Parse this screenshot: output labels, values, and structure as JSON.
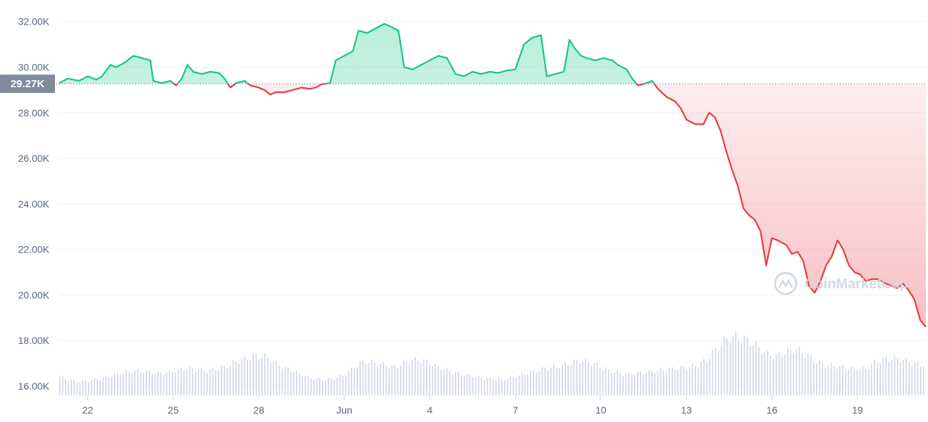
{
  "chart_data": {
    "type": "line",
    "title": "",
    "xlabel": "",
    "ylabel": "",
    "ylim": [
      15600,
      32700
    ],
    "baseline": 29270,
    "baseline_label": "29.27K",
    "y_ticks": [
      {
        "value": 32000,
        "label": "32.00K"
      },
      {
        "value": 30000,
        "label": "30.00K"
      },
      {
        "value": 28000,
        "label": "28.00K"
      },
      {
        "value": 26000,
        "label": "26.00K"
      },
      {
        "value": 24000,
        "label": "24.00K"
      },
      {
        "value": 22000,
        "label": "22.00K"
      },
      {
        "value": 20000,
        "label": "20.00K"
      },
      {
        "value": 18000,
        "label": "18.00K"
      },
      {
        "value": 16000,
        "label": "16.00K"
      }
    ],
    "x_ticks": [
      {
        "day": 22,
        "label": "22"
      },
      {
        "day": 25,
        "label": "25"
      },
      {
        "day": 28,
        "label": "28"
      },
      {
        "day": 31,
        "label": "Jun"
      },
      {
        "day": 34,
        "label": "4"
      },
      {
        "day": 37,
        "label": "7"
      },
      {
        "day": 40,
        "label": "10"
      },
      {
        "day": 43,
        "label": "13"
      },
      {
        "day": 46,
        "label": "16"
      },
      {
        "day": 49,
        "label": "19"
      }
    ],
    "xlim": [
      21.0,
      51.4
    ],
    "series": [
      {
        "points": [
          [
            21.0,
            29300
          ],
          [
            21.3,
            29500
          ],
          [
            21.7,
            29400
          ],
          [
            22.0,
            29600
          ],
          [
            22.3,
            29450
          ],
          [
            22.5,
            29600
          ],
          [
            22.8,
            30100
          ],
          [
            23.0,
            30000
          ],
          [
            23.3,
            30200
          ],
          [
            23.6,
            30500
          ],
          [
            23.9,
            30400
          ],
          [
            24.2,
            30300
          ],
          [
            24.3,
            29400
          ],
          [
            24.6,
            29300
          ],
          [
            24.9,
            29400
          ],
          [
            25.1,
            29200
          ],
          [
            25.3,
            29500
          ],
          [
            25.5,
            30100
          ],
          [
            25.7,
            29800
          ],
          [
            26.0,
            29700
          ],
          [
            26.3,
            29800
          ],
          [
            26.6,
            29750
          ],
          [
            26.8,
            29500
          ],
          [
            27.0,
            29100
          ],
          [
            27.2,
            29300
          ],
          [
            27.5,
            29400
          ],
          [
            27.7,
            29200
          ],
          [
            28.0,
            29100
          ],
          [
            28.2,
            29000
          ],
          [
            28.4,
            28800
          ],
          [
            28.6,
            28900
          ],
          [
            28.9,
            28900
          ],
          [
            29.2,
            29000
          ],
          [
            29.5,
            29100
          ],
          [
            29.8,
            29050
          ],
          [
            30.0,
            29100
          ],
          [
            30.2,
            29250
          ],
          [
            30.5,
            29300
          ],
          [
            30.7,
            30300
          ],
          [
            31.0,
            30500
          ],
          [
            31.3,
            30700
          ],
          [
            31.5,
            31600
          ],
          [
            31.8,
            31500
          ],
          [
            32.1,
            31700
          ],
          [
            32.4,
            31900
          ],
          [
            32.6,
            31800
          ],
          [
            32.9,
            31600
          ],
          [
            33.1,
            30000
          ],
          [
            33.4,
            29900
          ],
          [
            33.7,
            30100
          ],
          [
            34.0,
            30300
          ],
          [
            34.3,
            30500
          ],
          [
            34.6,
            30400
          ],
          [
            34.9,
            29700
          ],
          [
            35.2,
            29600
          ],
          [
            35.5,
            29800
          ],
          [
            35.8,
            29700
          ],
          [
            36.1,
            29800
          ],
          [
            36.4,
            29750
          ],
          [
            36.7,
            29850
          ],
          [
            37.0,
            29900
          ],
          [
            37.3,
            31000
          ],
          [
            37.6,
            31300
          ],
          [
            37.9,
            31400
          ],
          [
            38.1,
            29600
          ],
          [
            38.4,
            29700
          ],
          [
            38.7,
            29800
          ],
          [
            38.9,
            31200
          ],
          [
            39.1,
            30800
          ],
          [
            39.3,
            30500
          ],
          [
            39.5,
            30400
          ],
          [
            39.8,
            30300
          ],
          [
            40.1,
            30400
          ],
          [
            40.4,
            30300
          ],
          [
            40.6,
            30100
          ],
          [
            40.9,
            29900
          ],
          [
            41.1,
            29500
          ],
          [
            41.3,
            29200
          ],
          [
            41.6,
            29300
          ],
          [
            41.8,
            29400
          ],
          [
            42.0,
            29050
          ],
          [
            42.3,
            28700
          ],
          [
            42.6,
            28500
          ],
          [
            42.8,
            28200
          ],
          [
            43.0,
            27700
          ],
          [
            43.3,
            27500
          ],
          [
            43.6,
            27500
          ],
          [
            43.8,
            28000
          ],
          [
            44.0,
            27800
          ],
          [
            44.2,
            27200
          ],
          [
            44.4,
            26300
          ],
          [
            44.6,
            25500
          ],
          [
            44.8,
            24800
          ],
          [
            45.0,
            23800
          ],
          [
            45.2,
            23500
          ],
          [
            45.4,
            23300
          ],
          [
            45.6,
            22800
          ],
          [
            45.8,
            21300
          ],
          [
            46.0,
            22500
          ],
          [
            46.2,
            22400
          ],
          [
            46.5,
            22200
          ],
          [
            46.7,
            21800
          ],
          [
            46.9,
            21900
          ],
          [
            47.1,
            21500
          ],
          [
            47.3,
            20400
          ],
          [
            47.5,
            20100
          ],
          [
            47.7,
            20600
          ],
          [
            47.9,
            21300
          ],
          [
            48.1,
            21700
          ],
          [
            48.3,
            22400
          ],
          [
            48.5,
            22000
          ],
          [
            48.7,
            21300
          ],
          [
            48.9,
            21000
          ],
          [
            49.1,
            20900
          ],
          [
            49.3,
            20600
          ],
          [
            49.5,
            20700
          ],
          [
            49.7,
            20700
          ],
          [
            50.0,
            20500
          ],
          [
            50.2,
            20400
          ],
          [
            50.4,
            20300
          ],
          [
            50.6,
            20500
          ],
          [
            50.8,
            20200
          ],
          [
            51.0,
            19800
          ],
          [
            51.2,
            18900
          ],
          [
            51.4,
            18600
          ]
        ]
      }
    ],
    "volume_relative": [
      0.32,
      0.26,
      0.24,
      0.25,
      0.28,
      0.33,
      0.37,
      0.4,
      0.42,
      0.4,
      0.38,
      0.39,
      0.43,
      0.46,
      0.44,
      0.42,
      0.45,
      0.5,
      0.58,
      0.63,
      0.68,
      0.66,
      0.55,
      0.46,
      0.4,
      0.33,
      0.28,
      0.27,
      0.3,
      0.35,
      0.48,
      0.58,
      0.56,
      0.52,
      0.48,
      0.55,
      0.6,
      0.6,
      0.52,
      0.45,
      0.4,
      0.36,
      0.33,
      0.3,
      0.28,
      0.27,
      0.3,
      0.35,
      0.4,
      0.44,
      0.48,
      0.5,
      0.55,
      0.6,
      0.56,
      0.5,
      0.42,
      0.38,
      0.36,
      0.38,
      0.4,
      0.42,
      0.45,
      0.46,
      0.48,
      0.52,
      0.62,
      0.82,
      0.98,
      1.0,
      0.95,
      0.85,
      0.72,
      0.66,
      0.74,
      0.8,
      0.7,
      0.58,
      0.52,
      0.5,
      0.48,
      0.46,
      0.45,
      0.56,
      0.62,
      0.64,
      0.6,
      0.54,
      0.52
    ],
    "colors": {
      "up": "#16c784",
      "down": "#ea3943",
      "up_fill": "#16c784",
      "down_fill": "#ea3943",
      "grid": "#eff2f5",
      "baseline_badge": "#808a9d",
      "volume": "#cfd6e4",
      "tick_text": "#58667e"
    },
    "grid": true,
    "legend": "none"
  },
  "watermark": {
    "text": "CoinMarketCap"
  }
}
